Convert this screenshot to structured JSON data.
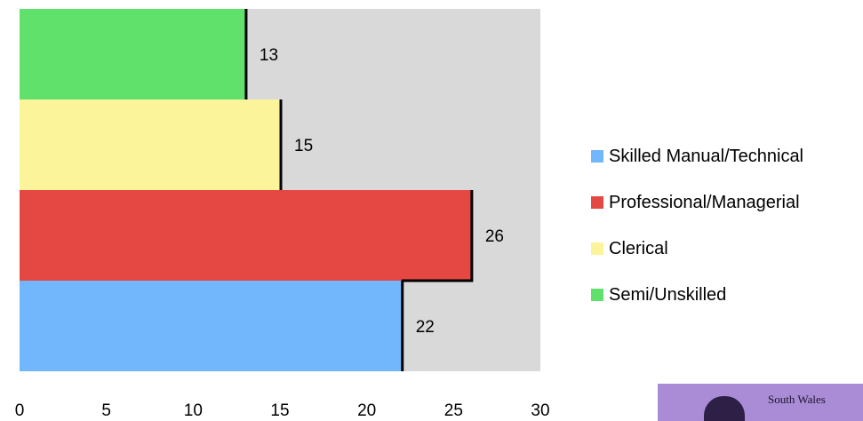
{
  "chart_data": {
    "type": "bar",
    "orientation": "horizontal",
    "categories": [
      "Skilled Manual/Technical",
      "Professional/Managerial",
      "Clerical",
      "Semi/Unskilled"
    ],
    "values": [
      22,
      26,
      15,
      13
    ],
    "data_labels": [
      "22",
      "26",
      "15",
      "13"
    ],
    "xlim": [
      0,
      30
    ],
    "x_ticks": [
      0,
      5,
      10,
      15,
      20,
      25,
      30
    ],
    "x_tick_labels": [
      "0",
      "5",
      "10",
      "15",
      "20",
      "25",
      "30"
    ],
    "grid": false,
    "legend_position": "right",
    "title": "",
    "xlabel": "",
    "ylabel": ""
  },
  "colors": {
    "Skilled Manual/Technical": "#72b6fb",
    "Professional/Managerial": "#e54742",
    "Clerical": "#fcf49b",
    "Semi/Unskilled": "#5fe16c",
    "plot_background": "#d9d9d9"
  },
  "legend": {
    "items": [
      {
        "label": "Skilled Manual/Technical",
        "color": "#72b6fb"
      },
      {
        "label": "Professional/Managerial",
        "color": "#e54742"
      },
      {
        "label": "Clerical",
        "color": "#fcf49b"
      },
      {
        "label": "Semi/Unskilled",
        "color": "#5fe16c"
      }
    ]
  },
  "logo": {
    "text": "South Wales"
  }
}
